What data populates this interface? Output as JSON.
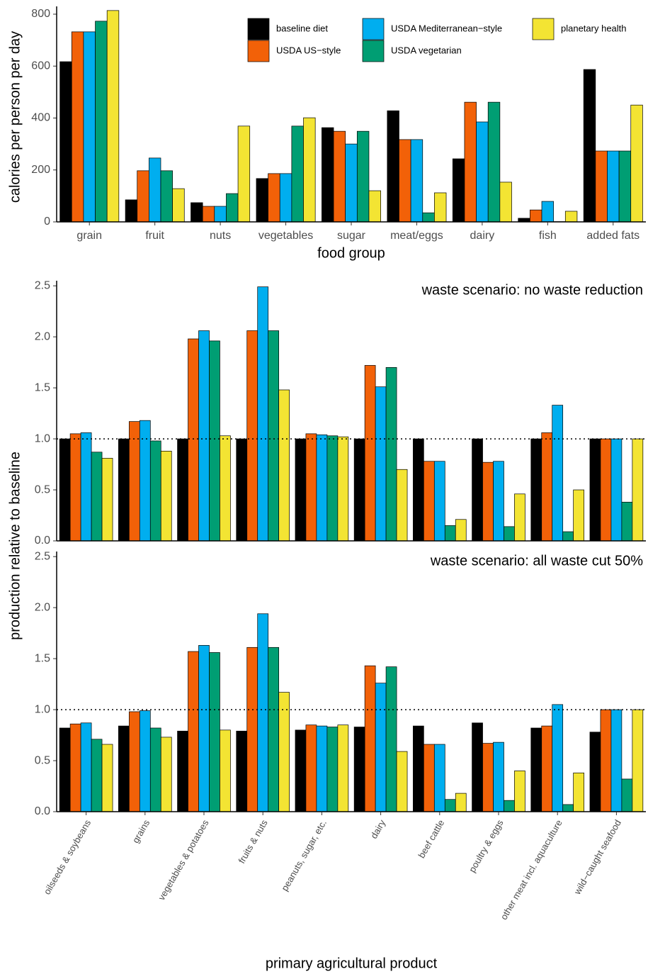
{
  "chart_data": [
    {
      "type": "bar",
      "ylabel": "calories per person per day",
      "xlabel": "food group",
      "categories": [
        "grain",
        "fruit",
        "nuts",
        "vegetables",
        "sugar",
        "meat/eggs",
        "dairy",
        "fish",
        "added fats"
      ],
      "series": [
        {
          "name": "baseline diet",
          "color": "#000000",
          "values": [
            617,
            85,
            74,
            167,
            363,
            428,
            243,
            14,
            587
          ]
        },
        {
          "name": "USDA US−style",
          "color": "#f26108",
          "values": [
            732,
            197,
            60,
            186,
            349,
            317,
            461,
            46,
            273
          ]
        },
        {
          "name": "USDA Mediterranean−style",
          "color": "#00aeef",
          "values": [
            732,
            246,
            60,
            186,
            300,
            317,
            385,
            79,
            273
          ]
        },
        {
          "name": "USDA vegetarian",
          "color": "#009e73",
          "values": [
            773,
            197,
            109,
            369,
            349,
            35,
            461,
            1,
            273
          ]
        },
        {
          "name": "planetary health",
          "color": "#f3e433",
          "values": [
            814,
            128,
            369,
            401,
            120,
            112,
            153,
            41,
            450
          ]
        }
      ],
      "ylim": [
        0,
        830
      ],
      "yticks": [
        0,
        200,
        400,
        600,
        800
      ],
      "legend": "top-right",
      "grid": false
    },
    {
      "type": "bar",
      "annotation": "waste scenario: no waste reduction",
      "ylabel": "production relative to baseline",
      "series": [
        {
          "color": "#000000",
          "values": [
            1.0,
            1.0,
            1.0,
            1.0,
            1.0,
            1.0,
            1.0,
            1.0,
            1.0,
            1.0
          ]
        },
        {
          "color": "#f26108",
          "values": [
            1.05,
            1.17,
            1.98,
            2.06,
            1.05,
            1.72,
            0.78,
            0.77,
            1.06,
            1.0
          ]
        },
        {
          "color": "#00aeef",
          "values": [
            1.06,
            1.18,
            2.06,
            2.49,
            1.04,
            1.51,
            0.78,
            0.78,
            1.33,
            1.0
          ]
        },
        {
          "color": "#009e73",
          "values": [
            0.87,
            0.98,
            1.96,
            2.06,
            1.03,
            1.7,
            0.15,
            0.14,
            0.09,
            0.38
          ]
        },
        {
          "color": "#f3e433",
          "values": [
            0.81,
            0.88,
            1.03,
            1.48,
            1.02,
            0.7,
            0.21,
            0.46,
            0.5,
            1.0
          ]
        }
      ],
      "ylim": [
        0,
        2.55
      ],
      "yticks": [
        {
          "value": 0,
          "label": "0.0"
        },
        0.5,
        {
          "value": 1,
          "label": "1.0"
        },
        1.5,
        {
          "value": 2,
          "label": "2.0"
        },
        2.5
      ],
      "reference_line": 1,
      "grid": false
    },
    {
      "type": "bar",
      "annotation": "waste scenario: all waste cut 50%",
      "xlabel": "primary agricultural product",
      "categories": [
        "oilseeds & soybeans",
        "grains",
        "vegetables & potatoes",
        "fruits & nuts",
        "peanuts, sugar, etc.",
        "dairy",
        "beef cattle",
        "poultry & eggs",
        "other meat incl. aquaculture",
        "wild−caught seafood"
      ],
      "series": [
        {
          "color": "#000000",
          "values": [
            0.82,
            0.84,
            0.79,
            0.79,
            0.8,
            0.83,
            0.84,
            0.87,
            0.82,
            0.78
          ]
        },
        {
          "color": "#f26108",
          "values": [
            0.86,
            0.98,
            1.57,
            1.61,
            0.85,
            1.43,
            0.66,
            0.67,
            0.84,
            1.0
          ]
        },
        {
          "color": "#00aeef",
          "values": [
            0.87,
            0.99,
            1.63,
            1.94,
            0.84,
            1.26,
            0.66,
            0.68,
            1.05,
            1.0
          ]
        },
        {
          "color": "#009e73",
          "values": [
            0.71,
            0.82,
            1.56,
            1.61,
            0.83,
            1.42,
            0.12,
            0.11,
            0.07,
            0.32
          ]
        },
        {
          "color": "#f3e433",
          "values": [
            0.66,
            0.73,
            0.8,
            1.17,
            0.85,
            0.59,
            0.18,
            0.4,
            0.38,
            1.0
          ]
        }
      ],
      "ylim": [
        0,
        2.55
      ],
      "yticks": [
        {
          "value": 0,
          "label": "0.0"
        },
        0.5,
        {
          "value": 1,
          "label": "1.0"
        },
        1.5,
        {
          "value": 2,
          "label": "2.0"
        },
        2.5
      ],
      "reference_line": 1,
      "grid": false
    }
  ]
}
